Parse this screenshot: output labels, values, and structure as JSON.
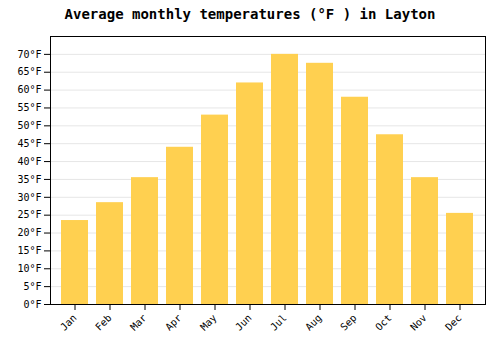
{
  "chart_data": {
    "type": "bar",
    "title": "Average monthly temperatures (°F ) in Layton",
    "categories": [
      "Jan",
      "Feb",
      "Mar",
      "Apr",
      "May",
      "Jun",
      "Jul",
      "Aug",
      "Sep",
      "Oct",
      "Nov",
      "Dec"
    ],
    "values": [
      23.5,
      28.5,
      35.5,
      44,
      53,
      62,
      70,
      67.5,
      58,
      47.5,
      35.5,
      25.5
    ],
    "color": "#FFD050",
    "ylim": [
      0,
      75
    ],
    "yticks": [
      {
        "value": 0,
        "label": "0°F"
      },
      {
        "value": 5,
        "label": "5°F"
      },
      {
        "value": 10,
        "label": "10°F"
      },
      {
        "value": 15,
        "label": "15°F"
      },
      {
        "value": 20,
        "label": "20°F"
      },
      {
        "value": 25,
        "label": "25°F"
      },
      {
        "value": 30,
        "label": "30°F"
      },
      {
        "value": 35,
        "label": "35°F"
      },
      {
        "value": 40,
        "label": "40°F"
      },
      {
        "value": 45,
        "label": "45°F"
      },
      {
        "value": 50,
        "label": "50°F"
      },
      {
        "value": 55,
        "label": "55°F"
      },
      {
        "value": 60,
        "label": "60°F"
      },
      {
        "value": 65,
        "label": "65°F"
      },
      {
        "value": 70,
        "label": "70°F"
      }
    ],
    "grid": true
  }
}
